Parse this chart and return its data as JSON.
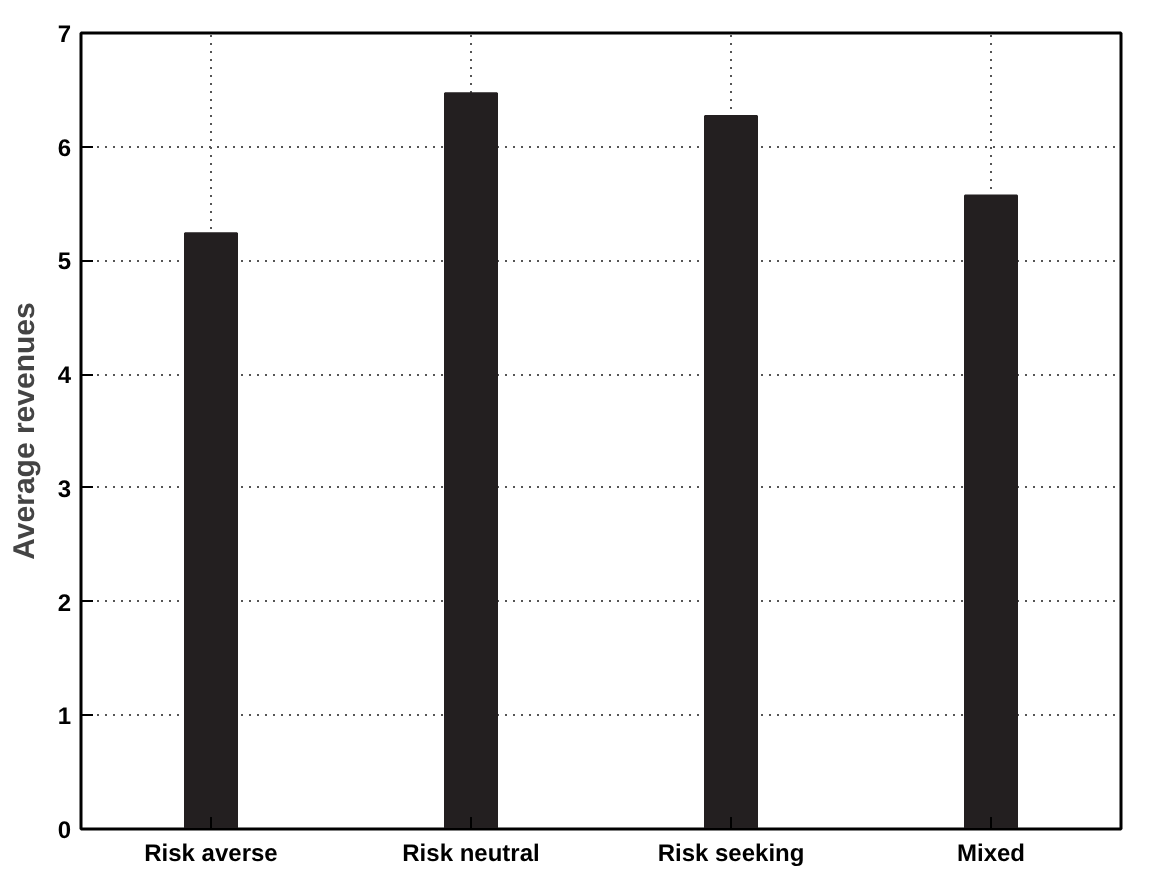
{
  "chart_data": {
    "type": "bar",
    "ylabel": "Average revenues",
    "categories": [
      "Risk averse",
      "Risk neutral",
      "Risk seeking",
      "Mixed"
    ],
    "values": [
      5.24,
      6.47,
      6.27,
      5.57
    ],
    "color": "#231f20",
    "ylim": [
      0,
      7
    ],
    "yticks": [
      0,
      1,
      2,
      3,
      4,
      5,
      6,
      7
    ],
    "grid": true
  }
}
